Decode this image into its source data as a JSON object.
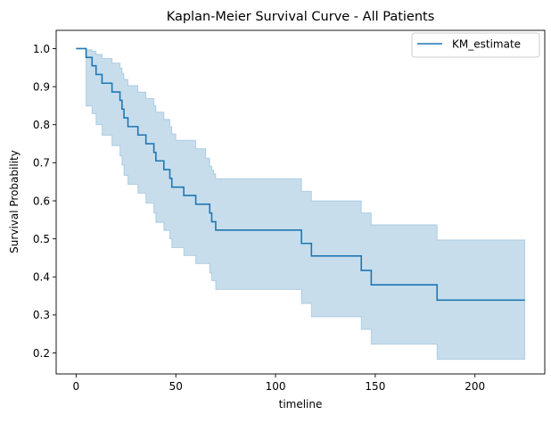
{
  "chart_data": {
    "type": "line",
    "title": "Kaplan-Meier Survival Curve - All Patients",
    "xlabel": "timeline",
    "ylabel": "Survival Probability",
    "xlim": [
      -10,
      235
    ],
    "ylim": [
      0.145,
      1.048
    ],
    "xticks": [
      0,
      50,
      100,
      150,
      200
    ],
    "xtick_labels": [
      "0",
      "50",
      "100",
      "150",
      "200"
    ],
    "yticks": [
      0.2,
      0.3,
      0.4,
      0.5,
      0.6,
      0.7,
      0.8,
      0.9,
      1.0
    ],
    "ytick_labels": [
      "0.2",
      "0.3",
      "0.4",
      "0.5",
      "0.6",
      "0.7",
      "0.8",
      "0.9",
      "1.0"
    ],
    "grid": false,
    "legend": {
      "position": "top-right",
      "entries": [
        "KM_estimate"
      ]
    },
    "series": [
      {
        "name": "KM_estimate",
        "color": "#1f77b4",
        "step": "post",
        "x": [
          0,
          5,
          8,
          10,
          13,
          18,
          22,
          23,
          24,
          26,
          31,
          35,
          39,
          40,
          44,
          47,
          48,
          50,
          54,
          60,
          65,
          67,
          68,
          69,
          70,
          72,
          113,
          118,
          143,
          148,
          181,
          225
        ],
        "y": [
          1.0,
          0.977,
          0.955,
          0.932,
          0.909,
          0.886,
          0.864,
          0.841,
          0.818,
          0.795,
          0.773,
          0.75,
          0.727,
          0.705,
          0.682,
          0.659,
          0.636,
          0.636,
          0.614,
          0.591,
          0.591,
          0.568,
          0.545,
          0.545,
          0.523,
          0.523,
          0.488,
          0.455,
          0.417,
          0.379,
          0.339,
          0.339
        ]
      }
    ],
    "confidence_band": {
      "color": "#1f77b4",
      "alpha": 0.25,
      "x": [
        0,
        5,
        8,
        10,
        13,
        18,
        22,
        23,
        24,
        26,
        31,
        35,
        39,
        40,
        44,
        47,
        48,
        50,
        54,
        60,
        65,
        67,
        68,
        69,
        70,
        72,
        113,
        118,
        143,
        148,
        181,
        225
      ],
      "lower": [
        1.0,
        0.849,
        0.829,
        0.8,
        0.772,
        0.745,
        0.718,
        0.694,
        0.667,
        0.643,
        0.62,
        0.594,
        0.568,
        0.543,
        0.522,
        0.5,
        0.477,
        0.477,
        0.456,
        0.435,
        0.435,
        0.41,
        0.39,
        0.39,
        0.367,
        0.367,
        0.33,
        0.295,
        0.262,
        0.223,
        0.183,
        0.183
      ],
      "upper": [
        1.0,
        0.997,
        0.993,
        0.985,
        0.974,
        0.962,
        0.949,
        0.935,
        0.919,
        0.903,
        0.886,
        0.869,
        0.85,
        0.833,
        0.814,
        0.795,
        0.776,
        0.759,
        0.759,
        0.737,
        0.712,
        0.691,
        0.681,
        0.671,
        0.658,
        0.658,
        0.625,
        0.6,
        0.568,
        0.537,
        0.497,
        0.497
      ]
    }
  }
}
